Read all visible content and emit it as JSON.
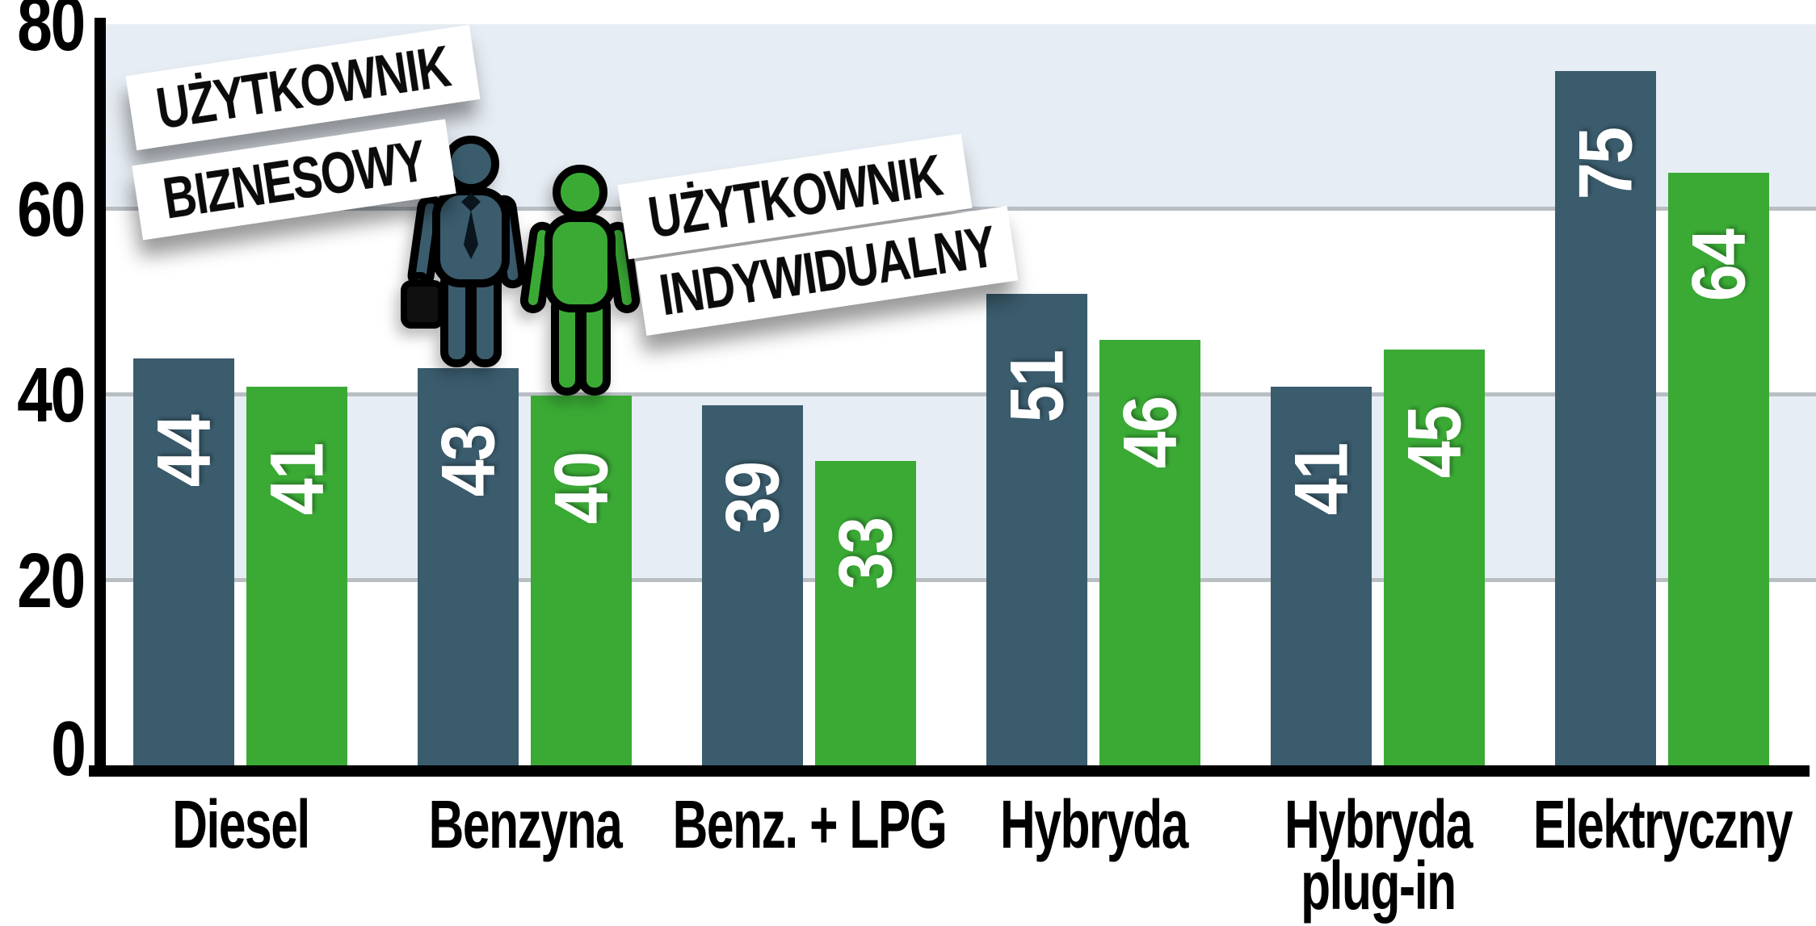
{
  "chart_data": {
    "type": "bar",
    "title": "",
    "categories": [
      "Diesel",
      "Benzyna",
      "Benz. + LPG",
      "Hybryda",
      "Hybryda plug-in",
      "Elektryczny"
    ],
    "category_lines": [
      [
        "Diesel"
      ],
      [
        "Benzyna"
      ],
      [
        "Benz. + LPG"
      ],
      [
        "Hybryda"
      ],
      [
        "Hybryda",
        "plug-in"
      ],
      [
        "Elektryczny"
      ]
    ],
    "series": [
      {
        "name": "UŻYTKOWNIK BIZNESOWY",
        "color": "#3A5C6D",
        "values": [
          44,
          43,
          39,
          51,
          41,
          75
        ]
      },
      {
        "name": "UŻYTKOWNIK INDYWIDUALNY",
        "color": "#3AAA35",
        "values": [
          41,
          40,
          33,
          46,
          45,
          64
        ]
      }
    ],
    "ylim": [
      0,
      80
    ],
    "yticks": [
      0,
      20,
      40,
      60,
      80
    ],
    "value_labels": "on-bar, white, rotated 90deg reading bottom-to-top",
    "shaded_bands": [
      [
        60,
        80
      ],
      [
        20,
        40
      ]
    ],
    "band_color": "#E7EDF4",
    "gridline_color": "#B9BEC3",
    "axis_color": "#000000",
    "grid": true,
    "legend_position": "floating tilted white tiles inside plot, top-left"
  },
  "legend": {
    "business": {
      "line1": "UŻYTKOWNIK",
      "line2": "BIZNESOWY",
      "icon": "business-person-icon",
      "color": "#3A5C6D"
    },
    "individual": {
      "line1": "UŻYTKOWNIK",
      "line2": "INDYWIDUALNY",
      "icon": "individual-person-icon",
      "color": "#3AAA35"
    }
  }
}
